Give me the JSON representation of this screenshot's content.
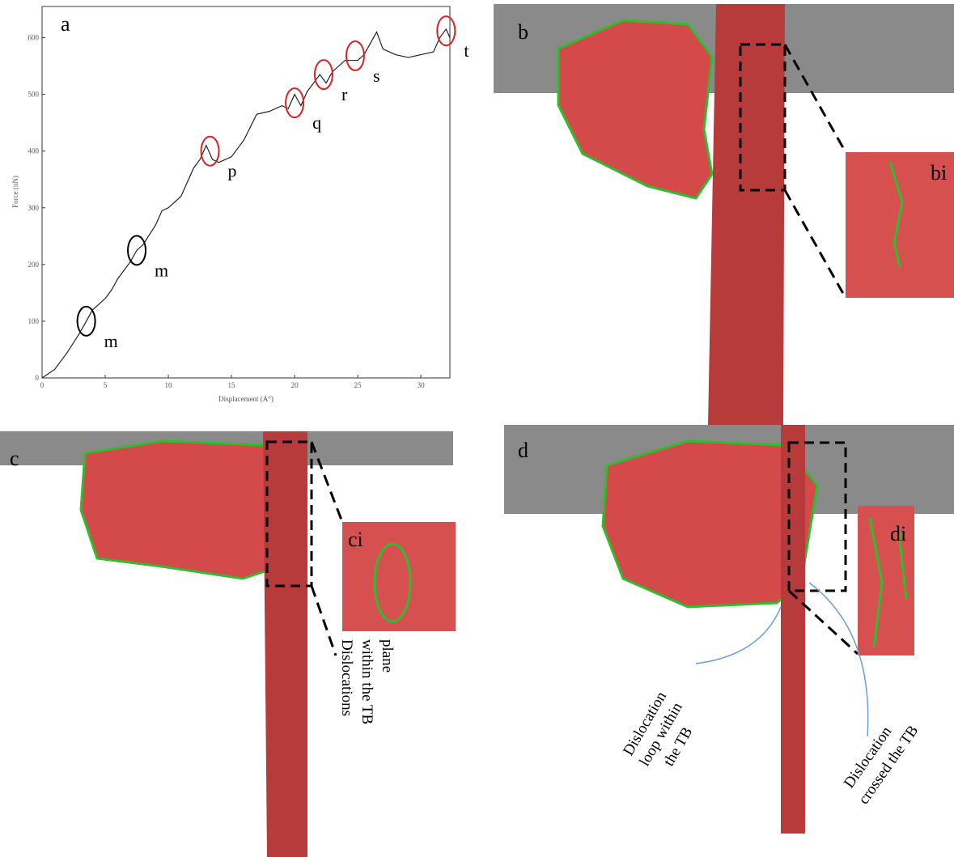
{
  "chart_data": {
    "type": "line",
    "panel_label": "a",
    "x_label": "Displacement (A°)",
    "y_label": "Force (nN)",
    "x": [
      0,
      1,
      2,
      3,
      3.5,
      4,
      5,
      5.5,
      6,
      7,
      7.5,
      8,
      9,
      9.5,
      10,
      11,
      12,
      12.5,
      13,
      13.5,
      14,
      15,
      16,
      17,
      18,
      19,
      19.5,
      20,
      20.5,
      21,
      22,
      22.5,
      23,
      24,
      25,
      25.5,
      26,
      26.5,
      27,
      28,
      29,
      30,
      31,
      31.5,
      32,
      32.3
    ],
    "values": [
      0,
      15,
      45,
      80,
      100,
      120,
      140,
      155,
      175,
      205,
      225,
      235,
      270,
      295,
      300,
      320,
      370,
      385,
      410,
      385,
      380,
      390,
      420,
      465,
      470,
      480,
      475,
      500,
      480,
      505,
      535,
      520,
      540,
      560,
      560,
      570,
      590,
      610,
      580,
      570,
      565,
      570,
      575,
      600,
      615,
      600
    ],
    "color": "#222222",
    "xlim": [
      0,
      32.3
    ],
    "xticks": [
      0,
      5,
      10,
      15,
      20,
      25,
      30
    ],
    "ylim": [
      0,
      655
    ],
    "yticks": [
      0,
      100,
      200,
      300,
      400,
      500,
      600
    ],
    "annotations": [
      {
        "label": "m",
        "x": 3.5,
        "y": 100,
        "color": "#000000"
      },
      {
        "label": "m",
        "x": 7.5,
        "y": 225,
        "color": "#000000"
      },
      {
        "label": "p",
        "x": 13.3,
        "y": 400,
        "color": "#e02020"
      },
      {
        "label": "q",
        "x": 20,
        "y": 485,
        "color": "#e02020"
      },
      {
        "label": "r",
        "x": 22.3,
        "y": 535,
        "color": "#e02020"
      },
      {
        "label": "s",
        "x": 24.8,
        "y": 568,
        "color": "#e02020"
      },
      {
        "label": "t",
        "x": 32,
        "y": 612,
        "color": "#e02020"
      }
    ]
  },
  "panels": {
    "b": {
      "label": "b",
      "inset": "bi"
    },
    "c": {
      "label": "c",
      "inset": "ci",
      "note": [
        "Dislocations",
        "within the TB",
        "plane"
      ]
    },
    "d": {
      "label": "d",
      "inset": "di",
      "note_loop": [
        "Dislocation",
        "loop within",
        "the TB"
      ],
      "note_crossed": [
        "Dislocation",
        "crossed the TB"
      ]
    }
  }
}
